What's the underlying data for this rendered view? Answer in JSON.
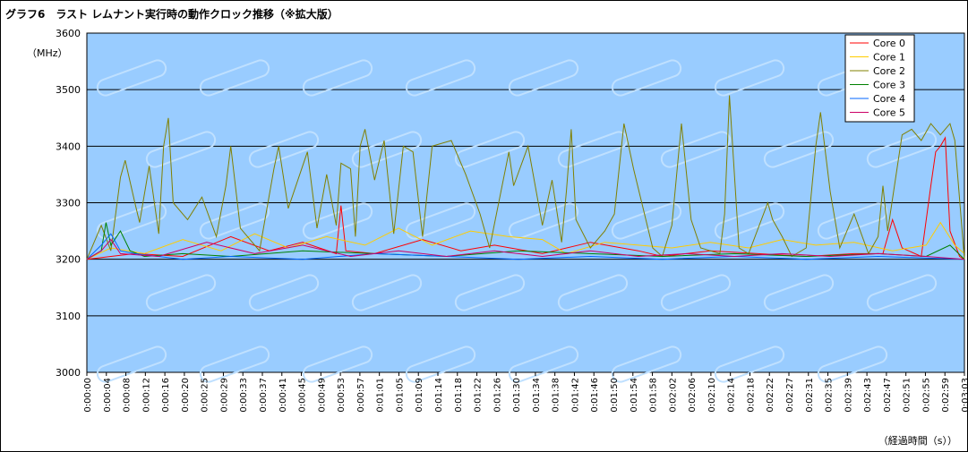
{
  "chart_data": {
    "type": "line",
    "title": "グラフ6　ラスト レムナント実行時の動作クロック推移（※拡大版）",
    "ylabel": "（MHz）",
    "xlabel": "（経過時間（s））",
    "ylim": [
      3000,
      3600
    ],
    "yticks": [
      3000,
      3100,
      3200,
      3300,
      3400,
      3500,
      3600
    ],
    "grid": "horizontal",
    "legend_position": "top-right",
    "background": "#99ccff",
    "x_tick_labels": [
      "0:00:00",
      "0:00:04",
      "0:00:08",
      "0:00:12",
      "0:00:16",
      "0:00:20",
      "0:00:25",
      "0:00:29",
      "0:00:33",
      "0:00:37",
      "0:00:41",
      "0:00:45",
      "0:00:49",
      "0:00:53",
      "0:00:57",
      "0:01:01",
      "0:01:05",
      "0:01:09",
      "0:01:14",
      "0:01:18",
      "0:01:22",
      "0:01:26",
      "0:01:30",
      "0:01:34",
      "0:01:38",
      "0:01:42",
      "0:01:46",
      "0:01:50",
      "0:01:54",
      "0:01:58",
      "0:02:02",
      "0:02:06",
      "0:02:10",
      "0:02:14",
      "0:02:18",
      "0:02:22",
      "0:02:27",
      "0:02:31",
      "0:02:35",
      "0:02:39",
      "0:02:43",
      "0:02:47",
      "0:02:51",
      "0:02:55",
      "0:02:59",
      "0:03:03"
    ],
    "x_range_seconds": [
      0,
      183
    ],
    "series": [
      {
        "name": "Core 0",
        "color": "#ff0000",
        "points": [
          [
            0,
            3200
          ],
          [
            10,
            3210
          ],
          [
            20,
            3205
          ],
          [
            30,
            3240
          ],
          [
            38,
            3215
          ],
          [
            45,
            3230
          ],
          [
            52,
            3210
          ],
          [
            53,
            3295
          ],
          [
            54,
            3215
          ],
          [
            60,
            3210
          ],
          [
            70,
            3235
          ],
          [
            78,
            3215
          ],
          [
            85,
            3225
          ],
          [
            95,
            3210
          ],
          [
            105,
            3230
          ],
          [
            115,
            3215
          ],
          [
            120,
            3205
          ],
          [
            130,
            3215
          ],
          [
            140,
            3210
          ],
          [
            150,
            3205
          ],
          [
            160,
            3210
          ],
          [
            166,
            3210
          ],
          [
            168,
            3270
          ],
          [
            170,
            3220
          ],
          [
            174,
            3205
          ],
          [
            176,
            3330
          ],
          [
            177,
            3390
          ],
          [
            178,
            3400
          ],
          [
            179,
            3415
          ],
          [
            180,
            3250
          ],
          [
            182,
            3205
          ],
          [
            183,
            3200
          ]
        ]
      },
      {
        "name": "Core 1",
        "color": "#ffcc00",
        "points": [
          [
            0,
            3200
          ],
          [
            5,
            3220
          ],
          [
            12,
            3210
          ],
          [
            20,
            3235
          ],
          [
            28,
            3215
          ],
          [
            35,
            3245
          ],
          [
            42,
            3220
          ],
          [
            50,
            3240
          ],
          [
            58,
            3225
          ],
          [
            65,
            3255
          ],
          [
            72,
            3225
          ],
          [
            80,
            3250
          ],
          [
            88,
            3240
          ],
          [
            95,
            3235
          ],
          [
            100,
            3210
          ],
          [
            108,
            3230
          ],
          [
            115,
            3225
          ],
          [
            122,
            3220
          ],
          [
            130,
            3230
          ],
          [
            138,
            3220
          ],
          [
            145,
            3235
          ],
          [
            152,
            3225
          ],
          [
            160,
            3230
          ],
          [
            168,
            3215
          ],
          [
            175,
            3225
          ],
          [
            178,
            3265
          ],
          [
            181,
            3225
          ],
          [
            183,
            3210
          ]
        ]
      },
      {
        "name": "Core 2",
        "color": "#808000",
        "points": [
          [
            0,
            3200
          ],
          [
            3,
            3260
          ],
          [
            5,
            3215
          ],
          [
            7,
            3345
          ],
          [
            8,
            3375
          ],
          [
            10,
            3300
          ],
          [
            11,
            3265
          ],
          [
            13,
            3365
          ],
          [
            15,
            3245
          ],
          [
            16,
            3400
          ],
          [
            17,
            3450
          ],
          [
            18,
            3300
          ],
          [
            21,
            3270
          ],
          [
            24,
            3310
          ],
          [
            27,
            3240
          ],
          [
            29,
            3330
          ],
          [
            30,
            3400
          ],
          [
            32,
            3255
          ],
          [
            36,
            3215
          ],
          [
            39,
            3360
          ],
          [
            40,
            3400
          ],
          [
            42,
            3290
          ],
          [
            46,
            3390
          ],
          [
            48,
            3255
          ],
          [
            50,
            3350
          ],
          [
            52,
            3260
          ],
          [
            53,
            3370
          ],
          [
            55,
            3360
          ],
          [
            56,
            3240
          ],
          [
            57,
            3400
          ],
          [
            58,
            3430
          ],
          [
            60,
            3340
          ],
          [
            62,
            3410
          ],
          [
            64,
            3245
          ],
          [
            66,
            3400
          ],
          [
            68,
            3390
          ],
          [
            70,
            3240
          ],
          [
            72,
            3400
          ],
          [
            76,
            3410
          ],
          [
            79,
            3350
          ],
          [
            82,
            3280
          ],
          [
            84,
            3220
          ],
          [
            88,
            3390
          ],
          [
            89,
            3330
          ],
          [
            92,
            3400
          ],
          [
            95,
            3260
          ],
          [
            97,
            3340
          ],
          [
            99,
            3230
          ],
          [
            100,
            3320
          ],
          [
            101,
            3430
          ],
          [
            102,
            3270
          ],
          [
            105,
            3220
          ],
          [
            108,
            3250
          ],
          [
            110,
            3280
          ],
          [
            111,
            3360
          ],
          [
            112,
            3440
          ],
          [
            114,
            3360
          ],
          [
            116,
            3290
          ],
          [
            118,
            3220
          ],
          [
            120,
            3205
          ],
          [
            122,
            3260
          ],
          [
            124,
            3440
          ],
          [
            126,
            3270
          ],
          [
            128,
            3220
          ],
          [
            132,
            3210
          ],
          [
            133,
            3280
          ],
          [
            134,
            3490
          ],
          [
            136,
            3220
          ],
          [
            138,
            3210
          ],
          [
            142,
            3300
          ],
          [
            143,
            3270
          ],
          [
            145,
            3240
          ],
          [
            147,
            3205
          ],
          [
            150,
            3220
          ],
          [
            152,
            3400
          ],
          [
            153,
            3460
          ],
          [
            155,
            3320
          ],
          [
            157,
            3220
          ],
          [
            160,
            3280
          ],
          [
            163,
            3210
          ],
          [
            165,
            3240
          ],
          [
            166,
            3330
          ],
          [
            167,
            3250
          ],
          [
            170,
            3420
          ],
          [
            172,
            3430
          ],
          [
            174,
            3410
          ],
          [
            176,
            3440
          ],
          [
            178,
            3420
          ],
          [
            180,
            3440
          ],
          [
            181,
            3410
          ],
          [
            183,
            3200
          ]
        ]
      },
      {
        "name": "Core 3",
        "color": "#008000",
        "points": [
          [
            0,
            3200
          ],
          [
            3,
            3215
          ],
          [
            4,
            3265
          ],
          [
            5,
            3225
          ],
          [
            7,
            3250
          ],
          [
            9,
            3215
          ],
          [
            12,
            3205
          ],
          [
            20,
            3210
          ],
          [
            30,
            3205
          ],
          [
            45,
            3215
          ],
          [
            60,
            3210
          ],
          [
            75,
            3205
          ],
          [
            90,
            3215
          ],
          [
            105,
            3210
          ],
          [
            120,
            3205
          ],
          [
            135,
            3210
          ],
          [
            150,
            3205
          ],
          [
            165,
            3210
          ],
          [
            175,
            3205
          ],
          [
            180,
            3225
          ],
          [
            183,
            3200
          ]
        ]
      },
      {
        "name": "Core 4",
        "color": "#0066ff",
        "points": [
          [
            0,
            3200
          ],
          [
            3,
            3225
          ],
          [
            5,
            3245
          ],
          [
            7,
            3215
          ],
          [
            10,
            3210
          ],
          [
            20,
            3200
          ],
          [
            30,
            3205
          ],
          [
            45,
            3200
          ],
          [
            60,
            3210
          ],
          [
            75,
            3205
          ],
          [
            90,
            3200
          ],
          [
            105,
            3205
          ],
          [
            120,
            3200
          ],
          [
            135,
            3205
          ],
          [
            150,
            3200
          ],
          [
            165,
            3205
          ],
          [
            183,
            3200
          ]
        ]
      },
      {
        "name": "Core 5",
        "color": "#cc0066",
        "points": [
          [
            0,
            3200
          ],
          [
            3,
            3215
          ],
          [
            5,
            3235
          ],
          [
            7,
            3210
          ],
          [
            15,
            3205
          ],
          [
            25,
            3230
          ],
          [
            35,
            3210
          ],
          [
            45,
            3225
          ],
          [
            55,
            3205
          ],
          [
            65,
            3215
          ],
          [
            75,
            3205
          ],
          [
            85,
            3215
          ],
          [
            95,
            3205
          ],
          [
            105,
            3215
          ],
          [
            115,
            3205
          ],
          [
            125,
            3210
          ],
          [
            135,
            3205
          ],
          [
            145,
            3210
          ],
          [
            155,
            3205
          ],
          [
            165,
            3210
          ],
          [
            175,
            3205
          ],
          [
            183,
            3200
          ]
        ]
      }
    ]
  }
}
